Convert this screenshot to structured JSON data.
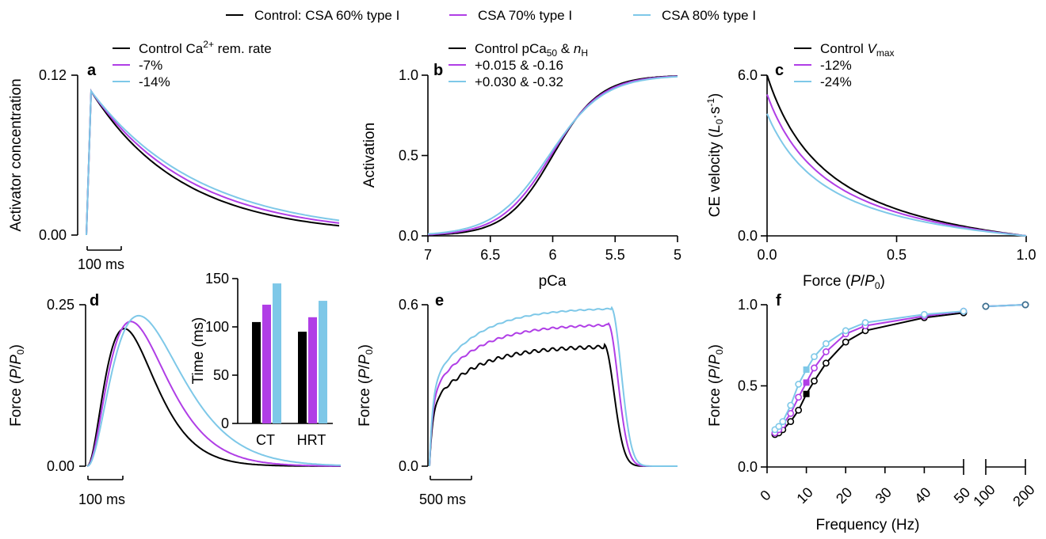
{
  "colors": {
    "control": "#000000",
    "csa70": "#b03ee6",
    "csa80": "#7ec8e8"
  },
  "legend": [
    {
      "label": "Control: CSA 60% type I",
      "color": "#000000"
    },
    {
      "label": "CSA 70% type I",
      "color": "#b03ee6"
    },
    {
      "label": "CSA 80% type I",
      "color": "#7ec8e8"
    }
  ],
  "chart_data": [
    {
      "panel": "a",
      "type": "line",
      "ylabel": "Activator concentration",
      "ylim": [
        0,
        0.12
      ],
      "yticks": [
        "0.00",
        "0.12"
      ],
      "scalebar": "100 ms",
      "legend": [
        {
          "main": "Control Ca",
          "sup": "2+",
          "rest": " rem. rate"
        },
        {
          "main": "-7%"
        },
        {
          "main": "-14%"
        }
      ],
      "series": [
        {
          "name": "Control Ca2+ rem. rate",
          "peak": 0.108,
          "end": 0.007
        },
        {
          "name": "-7%",
          "peak": 0.108,
          "end": 0.009
        },
        {
          "name": "-14%",
          "peak": 0.108,
          "end": 0.011
        }
      ]
    },
    {
      "panel": "b",
      "type": "line",
      "xlabel": "pCa",
      "ylabel": "Activation",
      "xlim": [
        7,
        5
      ],
      "ylim": [
        0,
        1
      ],
      "xticks": [
        "7",
        "6.5",
        "6",
        "5.5",
        "5"
      ],
      "yticks": [
        "0.0",
        "0.5",
        "1.0"
      ],
      "legend": [
        {
          "main": "Control pCa",
          "sub": "50",
          "rest": " & ",
          "ital": "n",
          "sub2": "H"
        },
        {
          "main": "+0.015 & -0.16"
        },
        {
          "main": "+0.030 & -0.32"
        }
      ],
      "series": [
        {
          "name": "Control",
          "pCa50": 6.0,
          "nH": 2.3
        },
        {
          "name": "+0.015 & -0.16",
          "pCa50": 6.015,
          "nH": 2.14
        },
        {
          "name": "+0.030 & -0.32",
          "pCa50": 6.03,
          "nH": 1.98
        }
      ]
    },
    {
      "panel": "c",
      "type": "line",
      "xlabel": "Force (P/P0)",
      "ylabel": "CE velocity (L0·s-1)",
      "xlim": [
        0,
        1
      ],
      "ylim": [
        0,
        6
      ],
      "xticks": [
        "0.0",
        "0.5",
        "1.0"
      ],
      "yticks": [
        "0.0",
        "6.0"
      ],
      "legend": [
        {
          "main": "Control ",
          "ital": "V",
          "sub": "max"
        },
        {
          "main": "-12%"
        },
        {
          "main": "-24%"
        }
      ],
      "series": [
        {
          "name": "Control Vmax",
          "vmax": 6.0
        },
        {
          "name": "-12%",
          "vmax": 5.28
        },
        {
          "name": "-24%",
          "vmax": 4.56
        }
      ]
    },
    {
      "panel": "d",
      "type": "line",
      "ylabel": "Force (P/P0)",
      "ylim": [
        0,
        0.25
      ],
      "yticks": [
        "0.00",
        "0.25"
      ],
      "scalebar": "100 ms",
      "series": [
        {
          "name": "Control",
          "peak": 0.213
        },
        {
          "name": "CSA 70% type I",
          "peak": 0.224
        },
        {
          "name": "CSA 80% type I",
          "peak": 0.233
        }
      ],
      "inset": {
        "type": "bar",
        "ylabel": "Time (ms)",
        "ylim": [
          0,
          150
        ],
        "yticks": [
          "0",
          "50",
          "100",
          "150"
        ],
        "categories": [
          "CT",
          "HRT"
        ],
        "series": [
          {
            "name": "Control",
            "values": [
              105,
              95
            ]
          },
          {
            "name": "CSA 70% type I",
            "values": [
              123,
              110
            ]
          },
          {
            "name": "CSA 80% type I",
            "values": [
              145,
              127
            ]
          }
        ]
      }
    },
    {
      "panel": "e",
      "type": "line",
      "ylabel": "Force (P/P0)",
      "ylim": [
        0,
        0.6
      ],
      "yticks": [
        "0.0",
        "0.6"
      ],
      "scalebar": "500 ms",
      "series": [
        {
          "name": "Control",
          "plateau": 0.46
        },
        {
          "name": "CSA 70% type I",
          "plateau": 0.54
        },
        {
          "name": "CSA 80% type I",
          "plateau": 0.6
        }
      ]
    },
    {
      "panel": "f",
      "type": "scatter",
      "xlabel": "Frequency (Hz)",
      "ylabel": "Force (P/P0)",
      "ylim": [
        0,
        1
      ],
      "yticks": [
        "0.0",
        "0.5",
        "1.0"
      ],
      "xticks": [
        "0",
        "10",
        "20",
        "30",
        "40",
        "50",
        "100",
        "200"
      ],
      "series": [
        {
          "name": "Control",
          "x": [
            2,
            3,
            4,
            6,
            8,
            12,
            15,
            20,
            25,
            40,
            50,
            100,
            200
          ],
          "y": [
            0.2,
            0.21,
            0.23,
            0.28,
            0.35,
            0.53,
            0.64,
            0.77,
            0.84,
            0.92,
            0.95,
            0.99,
            1.0
          ],
          "filled": {
            "x": 10,
            "y": 0.45
          }
        },
        {
          "name": "CSA 70% type I",
          "x": [
            2,
            3,
            4,
            6,
            8,
            12,
            15,
            20,
            25,
            40,
            50,
            100,
            200
          ],
          "y": [
            0.21,
            0.23,
            0.26,
            0.33,
            0.43,
            0.61,
            0.71,
            0.82,
            0.87,
            0.93,
            0.96,
            0.99,
            1.0
          ],
          "filled": {
            "x": 10,
            "y": 0.52
          }
        },
        {
          "name": "CSA 80% type I",
          "x": [
            2,
            3,
            4,
            6,
            8,
            12,
            15,
            20,
            25,
            40,
            50,
            100,
            200
          ],
          "y": [
            0.23,
            0.25,
            0.28,
            0.38,
            0.51,
            0.68,
            0.76,
            0.84,
            0.89,
            0.94,
            0.96,
            0.99,
            1.0
          ],
          "filled": {
            "x": 10,
            "y": 0.6
          }
        }
      ]
    }
  ]
}
